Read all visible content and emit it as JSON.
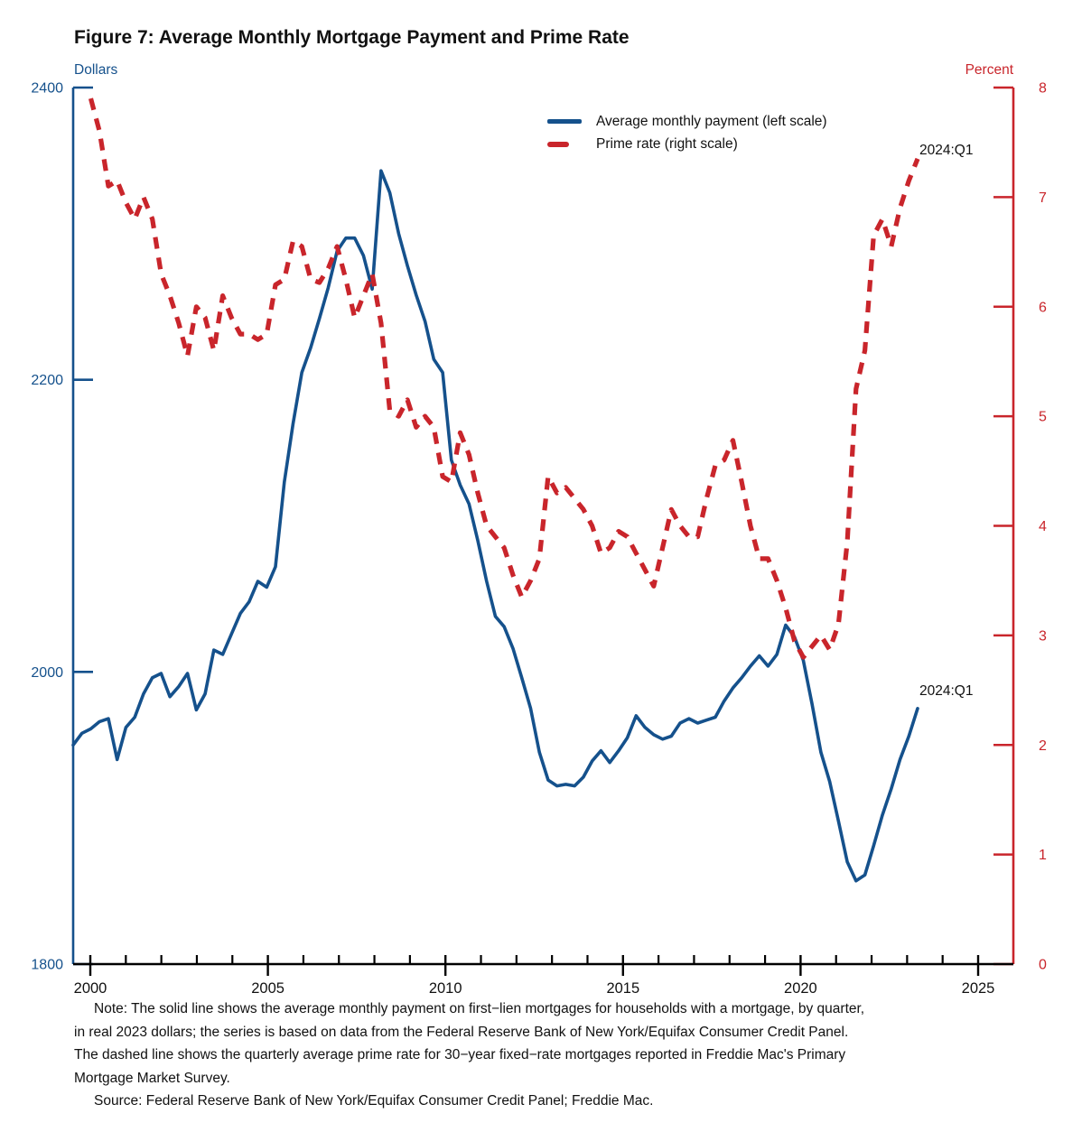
{
  "title": "Figure 7: Average Monthly Mortgage Payment and Prime Rate",
  "left_axis": {
    "unit_label": "Dollars",
    "ticks": [
      2400,
      2200,
      2000,
      1800
    ],
    "min": 1800,
    "max": 2400
  },
  "right_axis": {
    "unit_label": "Percent",
    "ticks": [
      8,
      7,
      6,
      5,
      4,
      3,
      2,
      1,
      0
    ],
    "min": 0,
    "max": 8
  },
  "x_axis": {
    "major_tick_labels": [
      "2000",
      "2005",
      "2010",
      "2015",
      "2020",
      "2025"
    ],
    "minor_tick_years_step": 1,
    "first_year": 2000,
    "last_labeled_year": 2025
  },
  "legend": {
    "items": [
      {
        "label": "Average monthly payment (left scale)",
        "style": "solid",
        "color": "#15518c"
      },
      {
        "label": "Prime rate (right scale)",
        "style": "dashed",
        "color": "#c9252b"
      }
    ]
  },
  "annotations": {
    "prime_end_label": "2024:Q1",
    "payment_end_label": "2024:Q1"
  },
  "note": {
    "lines": [
      "Note: The solid line shows the average monthly payment on first−lien mortgages for households with a mortgage, by quarter,",
      "in real 2023 dollars; the series is based on data from the Federal Reserve Bank of New York/Equifax Consumer Credit Panel.",
      "The dashed line shows the quarterly average prime rate for 30−year fixed−rate mortgages reported in Freddie Mac's Primary",
      "Mortgage Market Survey."
    ],
    "source": "Source: Federal Reserve Bank of New York/Equifax Consumer Credit Panel; Freddie Mac."
  },
  "colors": {
    "payment_line": "#15518c",
    "prime_line": "#c9252b",
    "left_axis": "#15518c",
    "right_axis": "#c9252b",
    "x_axis": "#000000",
    "text": "#111111"
  },
  "chart_data": {
    "type": "line",
    "frequency": "quarterly",
    "start_quarter": "2000Q1",
    "end_quarter": "2024Q1",
    "title": "Figure 7: Average Monthly Mortgage Payment and Prime Rate",
    "xlabel": "",
    "ylabel_left": "Dollars",
    "ylabel_right": "Percent",
    "ylim_left": [
      1800,
      2400
    ],
    "ylim_right": [
      0,
      8
    ],
    "grid": false,
    "legend_position": "upper center",
    "series": [
      {
        "name": "Average monthly payment (left scale)",
        "axis": "left",
        "style": "solid",
        "color": "#15518c",
        "values": [
          1950,
          1958,
          1961,
          1966,
          1968,
          1940,
          1962,
          1969,
          1985,
          1996,
          1999,
          1983,
          1990,
          1999,
          1974,
          1985,
          2015,
          2012,
          2026,
          2040,
          2048,
          2062,
          2058,
          2072,
          2130,
          2170,
          2205,
          2222,
          2242,
          2263,
          2288,
          2297,
          2297,
          2285,
          2262,
          2343,
          2328,
          2300,
          2278,
          2258,
          2240,
          2214,
          2205,
          2145,
          2128,
          2115,
          2090,
          2062,
          2038,
          2031,
          2016,
          1996,
          1975,
          1945,
          1926,
          1922,
          1923,
          1922,
          1928,
          1939,
          1946,
          1938,
          1946,
          1955,
          1970,
          1962,
          1957,
          1954,
          1956,
          1965,
          1968,
          1965,
          1967,
          1969,
          1980,
          1989,
          1996,
          2004,
          2011,
          2004,
          2012,
          2032,
          2024,
          2008,
          1978,
          1945,
          1925,
          1898,
          1870,
          1857,
          1861,
          1881,
          1902,
          1920,
          1940,
          1956,
          1975
        ]
      },
      {
        "name": "Prime rate (right scale)",
        "axis": "right",
        "style": "dashed",
        "color": "#c9252b",
        "values": [
          null,
          null,
          7.9,
          7.6,
          7.1,
          7.15,
          6.95,
          6.8,
          7.0,
          6.8,
          6.3,
          6.1,
          5.85,
          5.55,
          6.0,
          5.9,
          5.6,
          6.1,
          5.9,
          5.75,
          5.75,
          5.7,
          5.75,
          6.2,
          6.25,
          6.6,
          6.55,
          6.25,
          6.22,
          6.35,
          6.55,
          6.25,
          5.9,
          6.1,
          6.3,
          5.85,
          5.05,
          5.0,
          5.15,
          4.9,
          5.0,
          4.9,
          4.45,
          4.4,
          4.85,
          4.65,
          4.3,
          4.0,
          3.9,
          3.8,
          3.55,
          3.35,
          3.5,
          3.7,
          4.45,
          4.3,
          4.35,
          4.25,
          4.15,
          4.0,
          3.75,
          3.8,
          3.95,
          3.9,
          3.75,
          3.6,
          3.45,
          3.8,
          4.15,
          4.0,
          3.9,
          3.9,
          4.25,
          4.55,
          4.6,
          4.78,
          4.4,
          4.0,
          3.7,
          3.7,
          3.5,
          3.25,
          2.95,
          2.8,
          2.9,
          3.0,
          2.87,
          3.1,
          3.85,
          5.25,
          5.6,
          6.65,
          6.8,
          6.55,
          6.9,
          7.15,
          7.35
        ]
      }
    ]
  }
}
